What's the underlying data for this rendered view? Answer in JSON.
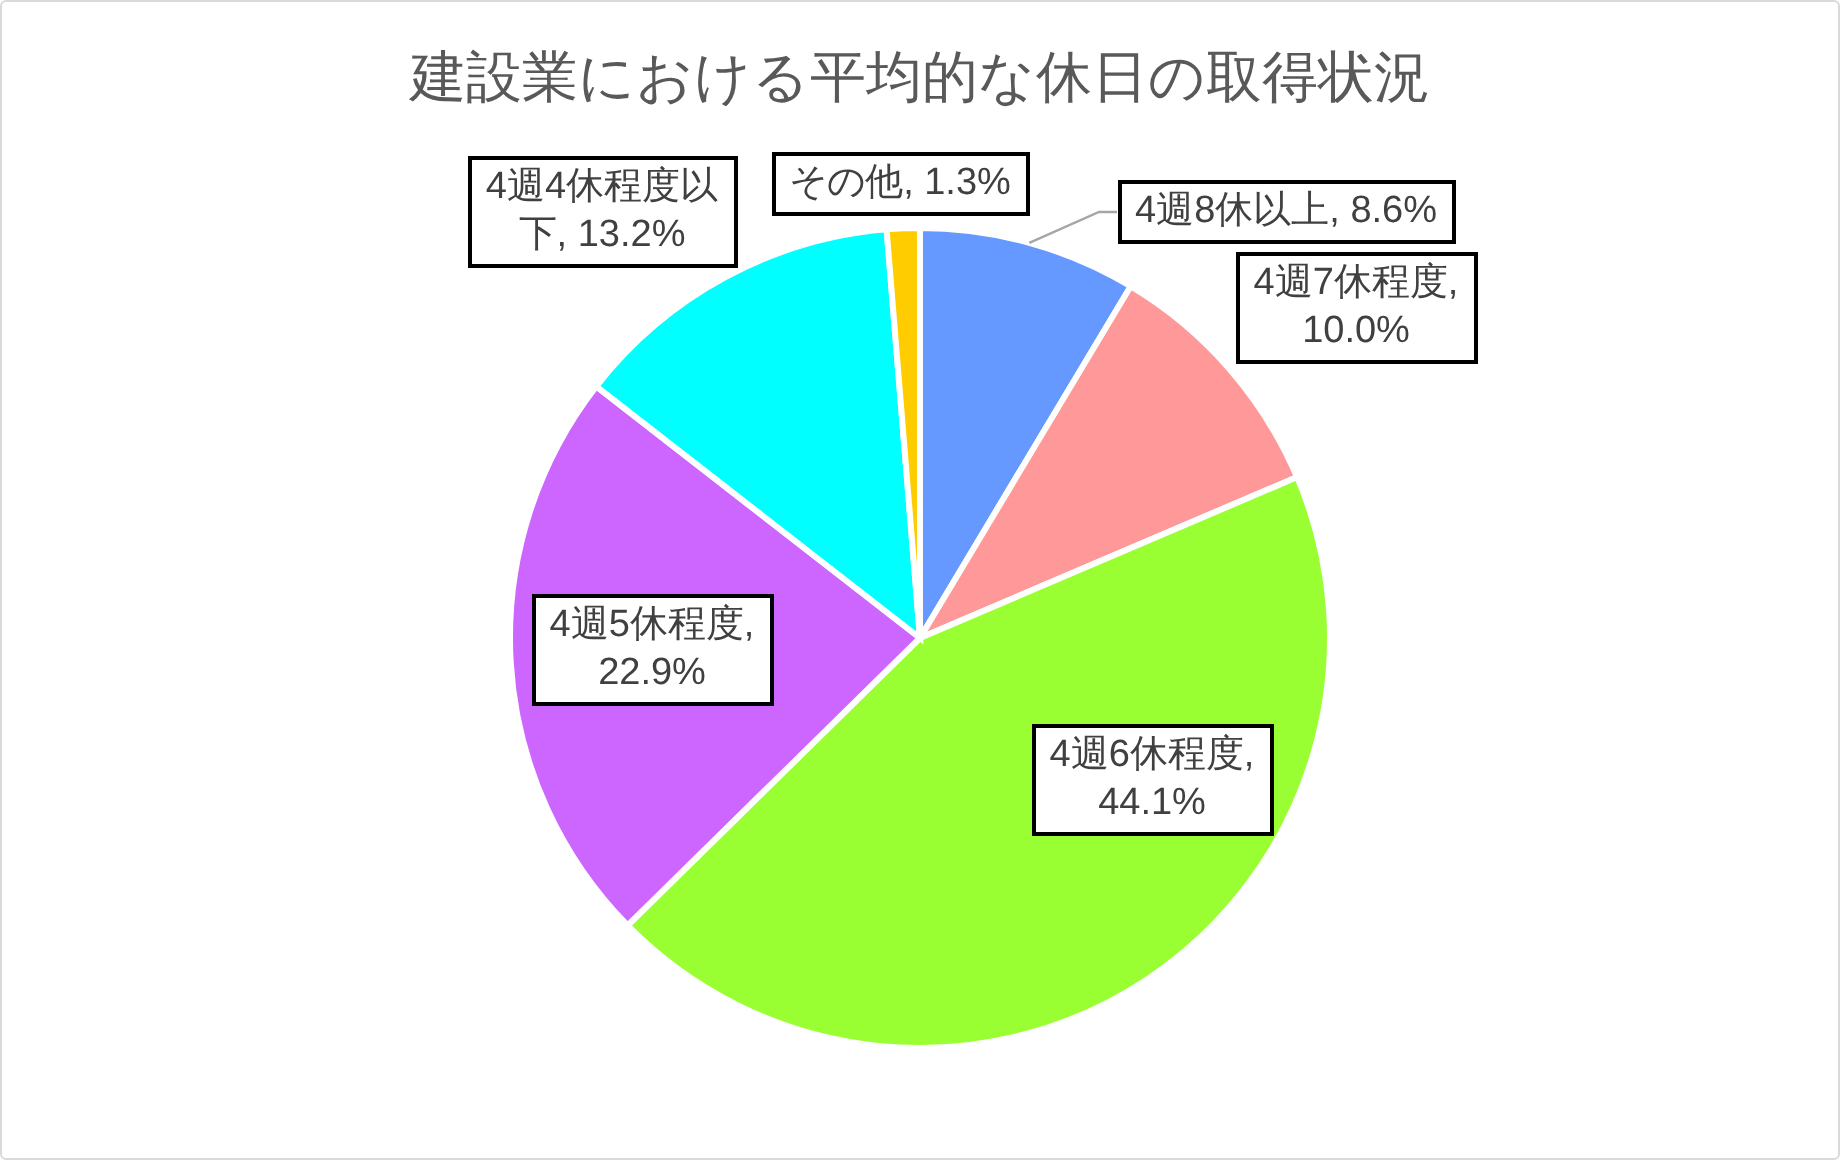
{
  "chart_data": {
    "type": "pie",
    "title": "建設業における平均的な休日の取得状況",
    "categories": [
      "4週8休以上",
      "4週7休程度",
      "4週6休程度",
      "4週5休程度",
      "4週4休程度以下",
      "その他"
    ],
    "values": [
      8.6,
      10.0,
      44.1,
      22.9,
      13.2,
      1.3
    ],
    "colors": [
      "#6699ff",
      "#ff9999",
      "#99ff33",
      "#cc66ff",
      "#00ffff",
      "#ffcc00"
    ],
    "value_labels": [
      ", 8.6%",
      ", 10.0%",
      ", 44.1%",
      ", 22.9%",
      ", 13.2%",
      ", 1.3%"
    ]
  }
}
